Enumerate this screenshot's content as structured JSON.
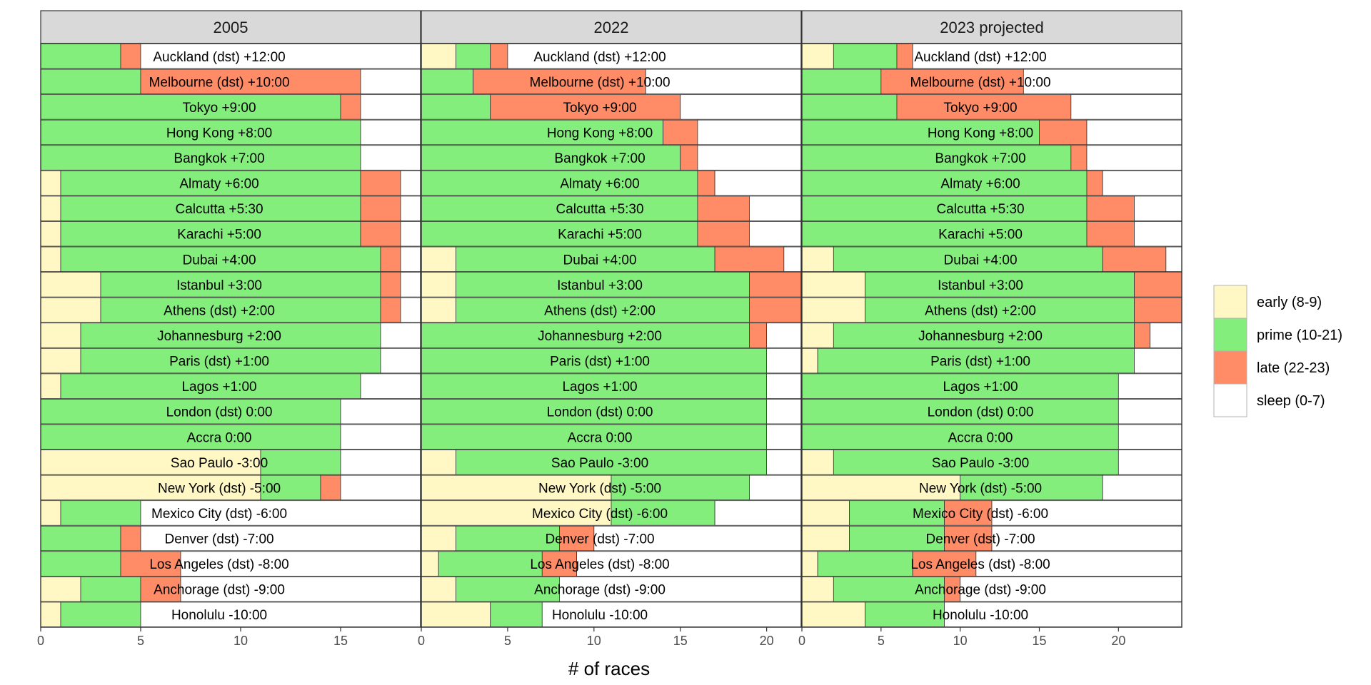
{
  "chart_data": {
    "type": "bar",
    "subtype": "stacked-horizontal-faceted",
    "xlabel": "# of races",
    "ylabel": "",
    "legend_position": "right",
    "grid": false,
    "categories": [
      "Auckland (dst) +12:00",
      "Melbourne (dst) +10:00",
      "Tokyo +9:00",
      "Hong Kong +8:00",
      "Bangkok +7:00",
      "Almaty +6:00",
      "Calcutta +5:30",
      "Karachi +5:00",
      "Dubai +4:00",
      "Istanbul +3:00",
      "Athens (dst) +2:00",
      "Johannesburg +2:00",
      "Paris (dst) +1:00",
      "Lagos +1:00",
      "London (dst) 0:00",
      "Accra 0:00",
      "Sao Paulo -3:00",
      "New York (dst) -5:00",
      "Mexico City (dst) -6:00",
      "Denver (dst) -7:00",
      "Los Angeles (dst) -8:00",
      "Anchorage (dst) -9:00",
      "Honolulu -10:00"
    ],
    "series_names": [
      "early (8-9)",
      "prime (10-21)",
      "late (22-23)",
      "sleep (0-7)"
    ],
    "colors": {
      "early (8-9)": "#FFF8C5",
      "prime (10-21)": "#84EE7C",
      "late (22-23)": "#FF8C66",
      "sleep (0-7)": "#FFFFFF"
    },
    "facets": [
      {
        "title": "2005",
        "xlim": [
          0,
          19
        ],
        "xticks": [
          0,
          5,
          10,
          15
        ],
        "values": [
          [
            0,
            4,
            1,
            14
          ],
          [
            0,
            5,
            11,
            3
          ],
          [
            0,
            15,
            1,
            3
          ],
          [
            0,
            16,
            0,
            3
          ],
          [
            0,
            16,
            0,
            3
          ],
          [
            1,
            15,
            2,
            1
          ],
          [
            1,
            15,
            2,
            1
          ],
          [
            1,
            15,
            2,
            1
          ],
          [
            1,
            16,
            1,
            1
          ],
          [
            3,
            14,
            1,
            1
          ],
          [
            3,
            14,
            1,
            1
          ],
          [
            2,
            15,
            0,
            2
          ],
          [
            2,
            15,
            0,
            2
          ],
          [
            1,
            15,
            0,
            3
          ],
          [
            0,
            15,
            0,
            4
          ],
          [
            0,
            15,
            0,
            4
          ],
          [
            11,
            4,
            0,
            4
          ],
          [
            11,
            3,
            1,
            4
          ],
          [
            1,
            4,
            0,
            14
          ],
          [
            0,
            4,
            1,
            14
          ],
          [
            0,
            4,
            3,
            12
          ],
          [
            2,
            3,
            2,
            12
          ],
          [
            1,
            4,
            0,
            14
          ]
        ]
      },
      {
        "title": "2022",
        "xlim": [
          0,
          22
        ],
        "xticks": [
          0,
          5,
          10,
          15,
          20
        ],
        "values": [
          [
            2,
            2,
            1,
            17
          ],
          [
            0,
            3,
            10,
            9
          ],
          [
            0,
            4,
            11,
            7
          ],
          [
            0,
            14,
            2,
            6
          ],
          [
            0,
            15,
            1,
            6
          ],
          [
            0,
            16,
            1,
            5
          ],
          [
            0,
            16,
            3,
            3
          ],
          [
            0,
            16,
            3,
            3
          ],
          [
            2,
            15,
            4,
            1
          ],
          [
            2,
            17,
            3,
            0
          ],
          [
            2,
            17,
            3,
            0
          ],
          [
            0,
            19,
            1,
            2
          ],
          [
            0,
            20,
            0,
            2
          ],
          [
            0,
            20,
            0,
            2
          ],
          [
            0,
            20,
            0,
            2
          ],
          [
            0,
            20,
            0,
            2
          ],
          [
            2,
            18,
            0,
            2
          ],
          [
            11,
            8,
            0,
            3
          ],
          [
            11,
            6,
            0,
            5
          ],
          [
            2,
            6,
            2,
            12
          ],
          [
            1,
            6,
            2,
            13
          ],
          [
            2,
            6,
            0,
            14
          ],
          [
            4,
            3,
            0,
            15
          ]
        ]
      },
      {
        "title": "2023 projected",
        "xlim": [
          0,
          24
        ],
        "xticks": [
          0,
          5,
          10,
          15,
          20
        ],
        "values": [
          [
            2,
            4,
            1,
            17
          ],
          [
            0,
            5,
            9,
            10
          ],
          [
            0,
            6,
            11,
            7
          ],
          [
            0,
            15,
            3,
            6
          ],
          [
            0,
            17,
            1,
            6
          ],
          [
            0,
            18,
            1,
            5
          ],
          [
            0,
            18,
            3,
            3
          ],
          [
            0,
            18,
            3,
            3
          ],
          [
            2,
            17,
            4,
            1
          ],
          [
            4,
            17,
            3,
            0
          ],
          [
            4,
            17,
            3,
            0
          ],
          [
            2,
            19,
            1,
            2
          ],
          [
            1,
            20,
            0,
            3
          ],
          [
            0,
            20,
            0,
            4
          ],
          [
            0,
            20,
            0,
            4
          ],
          [
            0,
            20,
            0,
            4
          ],
          [
            2,
            18,
            0,
            4
          ],
          [
            10,
            9,
            0,
            5
          ],
          [
            3,
            6,
            3,
            12
          ],
          [
            3,
            6,
            3,
            12
          ],
          [
            1,
            6,
            4,
            13
          ],
          [
            2,
            7,
            1,
            14
          ],
          [
            4,
            5,
            0,
            15
          ]
        ]
      }
    ]
  }
}
